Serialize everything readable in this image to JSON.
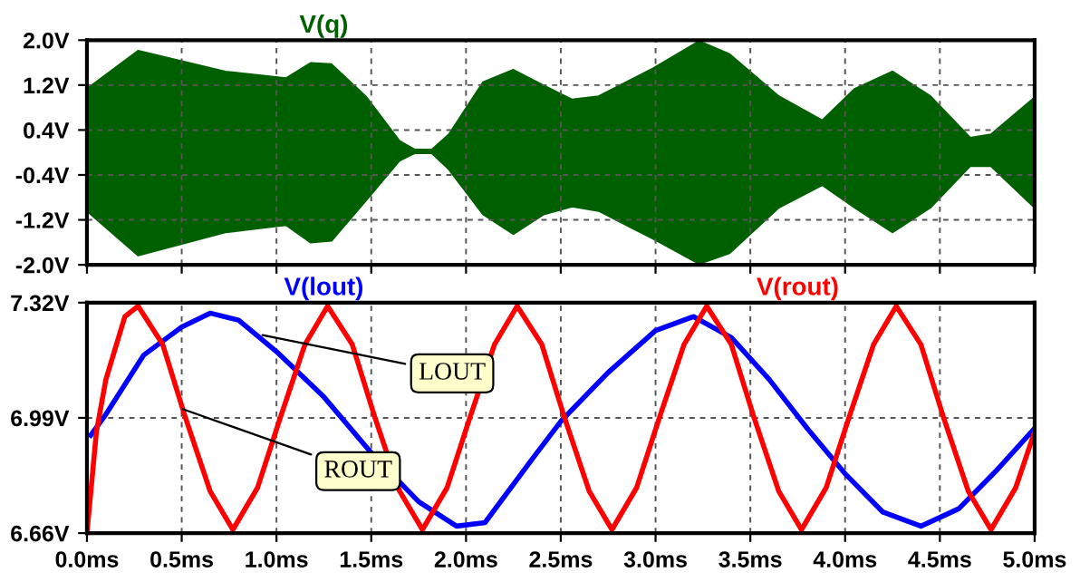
{
  "chart_data": [
    {
      "type": "area",
      "xlim": [
        0,
        5
      ],
      "xticks": [
        {
          "value": 0,
          "label": null
        },
        {
          "value": 0.5,
          "label": null
        },
        {
          "value": 1,
          "label": null
        },
        {
          "value": 1.5,
          "label": null
        },
        {
          "value": 2,
          "label": null
        },
        {
          "value": 2.5,
          "label": null
        },
        {
          "value": 3,
          "label": null
        },
        {
          "value": 3.5,
          "label": null
        },
        {
          "value": 4,
          "label": null
        },
        {
          "value": 4.5,
          "label": null
        },
        {
          "value": 5,
          "label": null
        }
      ],
      "ylim": [
        -2,
        2
      ],
      "yticks": [
        {
          "value": 2,
          "label": "2.0V"
        },
        {
          "value": 1.2,
          "label": "1.2V"
        },
        {
          "value": 0.4,
          "label": "0.4V"
        },
        {
          "value": -0.4,
          "label": "-0.4V"
        },
        {
          "value": -1.2,
          "label": "-1.2V"
        },
        {
          "value": -2,
          "label": "-2.0V"
        }
      ],
      "tick_labels": "y",
      "grid": true,
      "line_style": "dashed",
      "series": [
        {
          "name": "V(q)",
          "color": "#006000",
          "x": [
            0,
            0.27,
            0.73,
            1.05,
            1.18,
            1.29,
            1.47,
            1.65,
            1.73,
            1.82,
            1.91,
            2.09,
            2.25,
            2.41,
            2.56,
            2.7,
            2.99,
            3.23,
            3.39,
            3.65,
            3.88,
            4.05,
            4.25,
            4.45,
            4.66,
            4.77,
            5
          ],
          "values": [
            1.13,
            1.81,
            1.44,
            1.32,
            1.59,
            1.57,
            1.0,
            0.2,
            0.05,
            0.05,
            0.32,
            1.25,
            1.47,
            1.19,
            0.94,
            1.0,
            1.5,
            1.98,
            1.75,
            1.0,
            0.57,
            1.13,
            1.44,
            1.0,
            0.26,
            0.32,
            0.98
          ]
        },
        {
          "color": "#006000",
          "x": [
            0,
            0.27,
            0.73,
            1.05,
            1.18,
            1.29,
            1.47,
            1.65,
            1.73,
            1.82,
            1.91,
            2.09,
            2.25,
            2.41,
            2.56,
            2.7,
            2.99,
            3.23,
            3.39,
            3.65,
            3.88,
            4.05,
            4.25,
            4.45,
            4.66,
            4.77,
            5
          ],
          "values": [
            -1.04,
            -1.83,
            -1.42,
            -1.29,
            -1.6,
            -1.57,
            -0.86,
            -0.14,
            -0.01,
            -0.01,
            -0.3,
            -1.1,
            -1.45,
            -1.1,
            -0.96,
            -1.04,
            -1.54,
            -1.98,
            -1.79,
            -0.98,
            -0.58,
            -0.98,
            -1.42,
            -0.98,
            -0.24,
            -0.24,
            -0.98
          ]
        }
      ]
    },
    {
      "type": "line",
      "xlim": [
        0,
        5
      ],
      "xticks": [
        {
          "value": 0,
          "label": "0.0ms"
        },
        {
          "value": 0.5,
          "label": "0.5ms"
        },
        {
          "value": 1,
          "label": "1.0ms"
        },
        {
          "value": 1.5,
          "label": "1.5ms"
        },
        {
          "value": 2,
          "label": "2.0ms"
        },
        {
          "value": 2.5,
          "label": "2.5ms"
        },
        {
          "value": 3,
          "label": "3.0ms"
        },
        {
          "value": 3.5,
          "label": "3.5ms"
        },
        {
          "value": 4,
          "label": "4.0ms"
        },
        {
          "value": 4.5,
          "label": "4.5ms"
        },
        {
          "value": 5,
          "label": "5.0ms"
        }
      ],
      "ylim": [
        6.66,
        7.32
      ],
      "yticks": [
        {
          "value": 6.66,
          "label": "6.66V"
        },
        {
          "value": 6.99,
          "label": "6.99V"
        },
        {
          "value": 7.32,
          "label": "7.32V"
        }
      ],
      "grid": true,
      "line_style": "solid",
      "series": [
        {
          "name": "V(lout)",
          "color": "#0000ff",
          "x": [
            0.02,
            0.1,
            0.3,
            0.5,
            0.65,
            0.8,
            1.0,
            1.25,
            1.5,
            1.75,
            1.95,
            2.1,
            2.36,
            2.5,
            2.75,
            3.0,
            3.2,
            3.4,
            3.6,
            3.8,
            4.0,
            4.2,
            4.4,
            4.6,
            4.8,
            5.0
          ],
          "values": [
            6.94,
            7.0,
            7.17,
            7.25,
            7.29,
            7.27,
            7.18,
            7.05,
            6.89,
            6.75,
            6.68,
            6.69,
            6.88,
            6.98,
            7.12,
            7.24,
            7.28,
            7.22,
            7.1,
            6.96,
            6.83,
            6.72,
            6.68,
            6.73,
            6.84,
            6.96
          ]
        },
        {
          "name": "V(rout)",
          "color": "#ff0000",
          "x": [
            0,
            0.05,
            0.1,
            0.2,
            0.27,
            0.4,
            0.52,
            0.65,
            0.77,
            0.9,
            1.02,
            1.15,
            1.27,
            1.4,
            1.52,
            1.65,
            1.77,
            1.9,
            2.02,
            2.15,
            2.27,
            2.4,
            2.52,
            2.65,
            2.77,
            2.9,
            3.02,
            3.15,
            3.27,
            3.4,
            3.52,
            3.65,
            3.77,
            3.9,
            4.02,
            4.15,
            4.27,
            4.4,
            4.52,
            4.65,
            4.77,
            4.9,
            5.0
          ],
          "values": [
            6.66,
            6.95,
            7.1,
            7.28,
            7.31,
            7.2,
            6.99,
            6.78,
            6.67,
            6.79,
            6.99,
            7.2,
            7.31,
            7.2,
            6.99,
            6.78,
            6.67,
            6.79,
            6.99,
            7.2,
            7.31,
            7.2,
            6.99,
            6.78,
            6.67,
            6.79,
            6.99,
            7.2,
            7.31,
            7.2,
            6.99,
            6.78,
            6.67,
            6.79,
            6.99,
            7.2,
            7.31,
            7.2,
            6.99,
            6.78,
            6.67,
            6.79,
            6.95
          ]
        }
      ],
      "annotations": [
        {
          "text": "LOUT",
          "x": 0.9,
          "y": 7.23
        },
        {
          "text": "ROUT",
          "x": 0.48,
          "y": 7.02
        }
      ]
    }
  ]
}
